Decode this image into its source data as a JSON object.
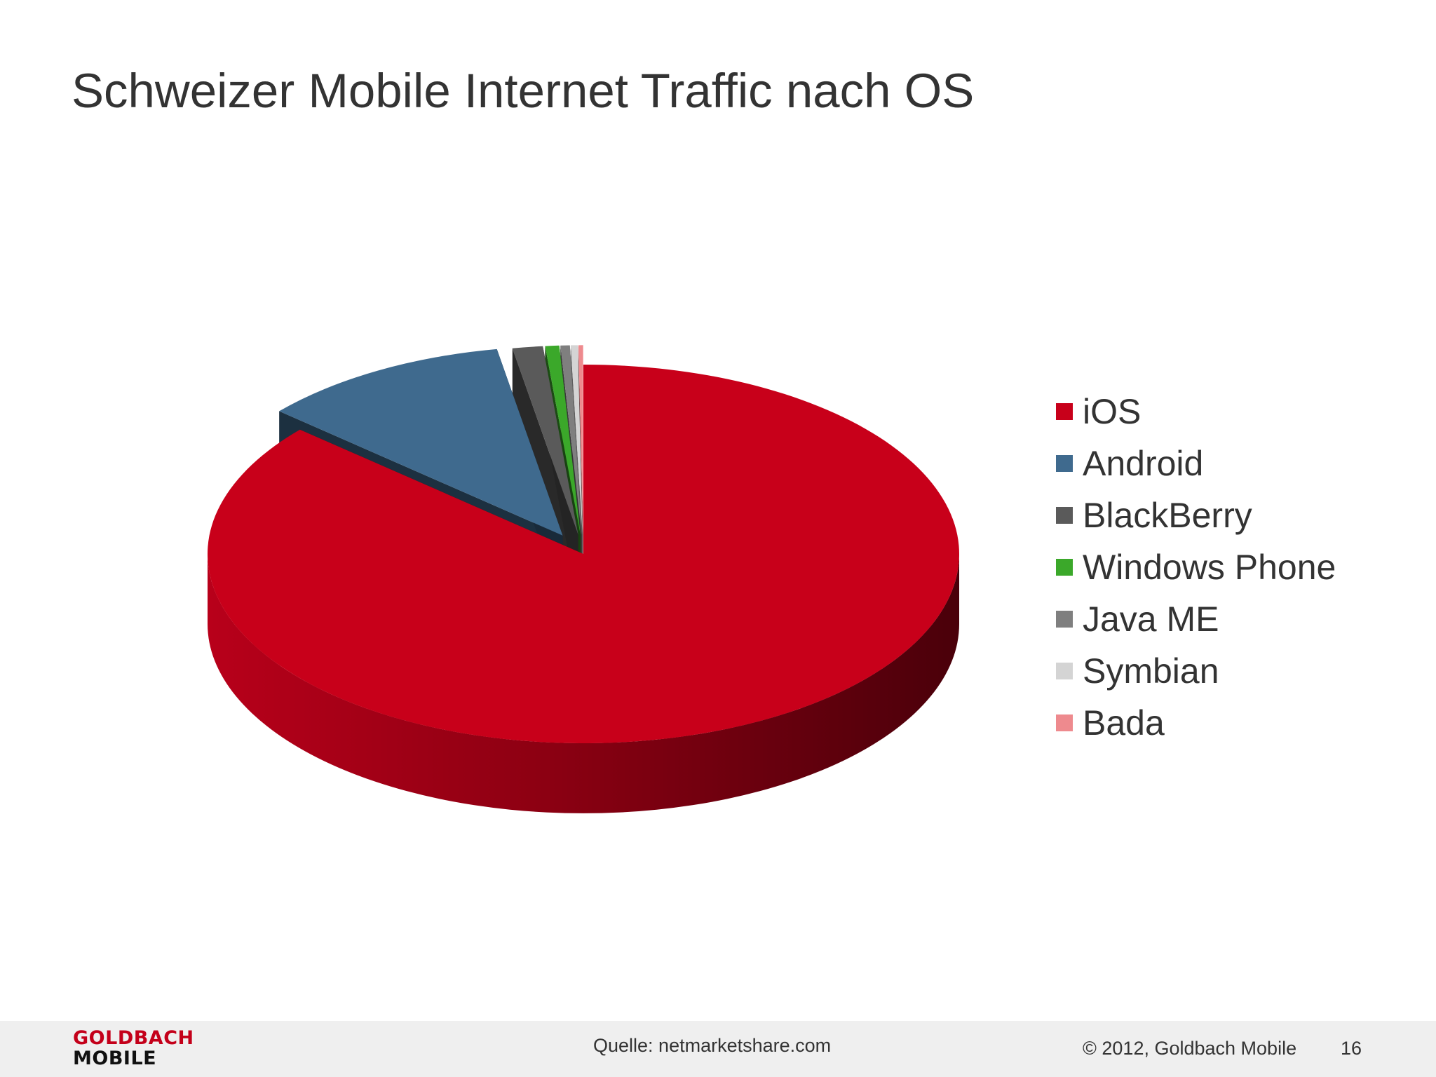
{
  "slide": {
    "title": "Schweizer Mobile Internet Traffic nach OS"
  },
  "chart_data": {
    "type": "pie",
    "style": "3d-exploded",
    "title": "",
    "legend_position": "right",
    "categories": [
      "iOS",
      "Android",
      "BlackBerry",
      "Windows Phone",
      "Java ME",
      "Symbian",
      "Bada"
    ],
    "values": [
      86.4,
      10.8,
      1.3,
      0.6,
      0.4,
      0.3,
      0.2
    ],
    "colors": [
      "#c8001a",
      "#3f6a8e",
      "#5a5a5a",
      "#3ba82a",
      "#7f7f7f",
      "#d4d4d4",
      "#ee8a8e"
    ]
  },
  "footer": {
    "logo_line1": "GOLDBACH",
    "logo_line2": "MOBILE",
    "source": "Quelle: netmarketshare.com",
    "copyright": "© 2012, Goldbach Mobile",
    "page_number": "16"
  }
}
